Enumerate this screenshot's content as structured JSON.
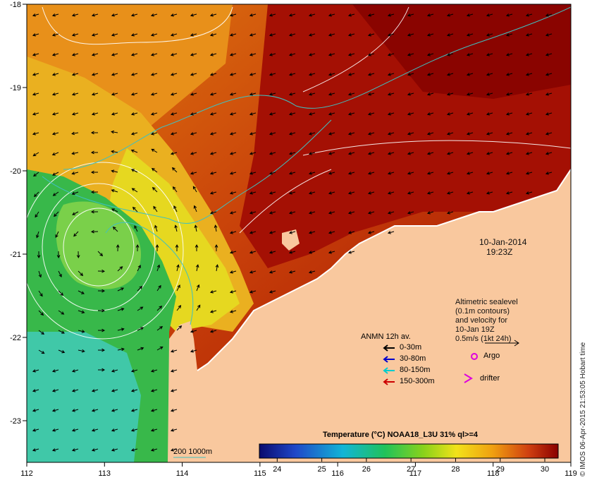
{
  "map": {
    "date_label": "10-Jan-2014",
    "time_label": "19:23Z",
    "altimetry_lines": [
      "Altimetric sealevel",
      "(0.1m contours)",
      "and velocity for",
      "10-Jan 19Z",
      "0.5m/s (1kt 24h)"
    ],
    "anmn_title": "ANMN 12h av.",
    "anmn_items": [
      {
        "label": "0-30m",
        "color": "#000000"
      },
      {
        "label": "30-80m",
        "color": "#0000cc"
      },
      {
        "label": "80-150m",
        "color": "#00cccc"
      },
      {
        "label": "150-300m",
        "color": "#cc0000"
      }
    ],
    "argo_label": "Argo",
    "drifter_label": "drifter",
    "argo_color": "#dd00dd",
    "drifter_color": "#dd00dd",
    "contour_label": "200  1000m",
    "colorbar_title": "Temperature (°C) NOAA18_L3U 31% ql>=4",
    "colorbar_ticks": [
      "24",
      "25",
      "26",
      "27",
      "28",
      "29",
      "30"
    ],
    "credit": "© IMOS 06-Apr-2015 21:53:05 Hobart time",
    "lon_ticks": [
      "112",
      "113",
      "114",
      "115",
      "116",
      "117",
      "118",
      "119"
    ],
    "lat_ticks": [
      "-18",
      "-19",
      "-20",
      "-21",
      "-22",
      "-23"
    ],
    "land_color": "#f9c89e"
  }
}
